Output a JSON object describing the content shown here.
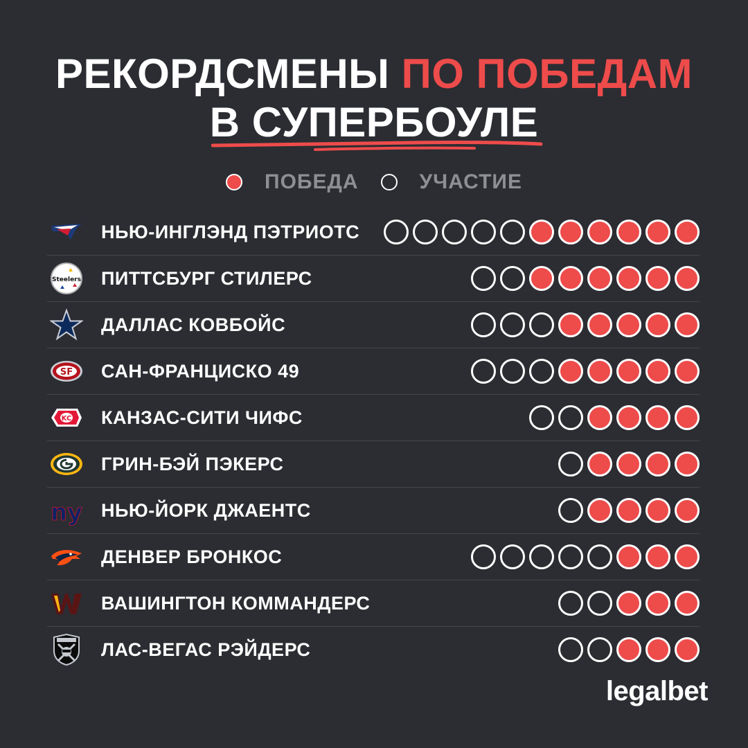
{
  "title": {
    "line1_white": "РЕКОРДСМЕНЫ ",
    "line1_red": "ПО ПОБЕДАМ",
    "line2": "В СУПЕРБОУЛЕ"
  },
  "legend": {
    "win": "ПОБЕДА",
    "participation": "УЧАСТИЕ"
  },
  "colors": {
    "background": "#2b2d32",
    "accent": "#ee4b4b",
    "text": "#ffffff",
    "legend_text": "#8e8f93"
  },
  "chart_data": {
    "type": "table",
    "columns": [
      "team",
      "appearances",
      "wins"
    ],
    "rows": [
      {
        "team": "НЬЮ-ИНГЛЭНД ПЭТРИОТС",
        "logo": "patriots-logo",
        "appearances": 11,
        "wins": 6
      },
      {
        "team": "ПИТТСБУРГ СТИЛЕРС",
        "logo": "steelers-logo",
        "appearances": 8,
        "wins": 6
      },
      {
        "team": "ДАЛЛАС КОВБОЙС",
        "logo": "cowboys-logo",
        "appearances": 8,
        "wins": 5
      },
      {
        "team": "САН-ФРАНЦИСКО 49",
        "logo": "49ers-logo",
        "appearances": 8,
        "wins": 5
      },
      {
        "team": "КАНЗАС-СИТИ ЧИФС",
        "logo": "chiefs-logo",
        "appearances": 6,
        "wins": 4
      },
      {
        "team": "ГРИН-БЭЙ ПЭКЕРС",
        "logo": "packers-logo",
        "appearances": 5,
        "wins": 4
      },
      {
        "team": "НЬЮ-ЙОРК ДЖАЕНТС",
        "logo": "giants-logo",
        "appearances": 5,
        "wins": 4
      },
      {
        "team": "ДЕНВЕР БРОНКОС",
        "logo": "broncos-logo",
        "appearances": 8,
        "wins": 3
      },
      {
        "team": "ВАШИНГТОН КОММАНДЕРС",
        "logo": "commanders-logo",
        "appearances": 5,
        "wins": 3
      },
      {
        "team": "ЛАС-ВЕГАС РЭЙДЕРС",
        "logo": "raiders-logo",
        "appearances": 5,
        "wins": 3
      }
    ]
  },
  "brand": "legalbet"
}
